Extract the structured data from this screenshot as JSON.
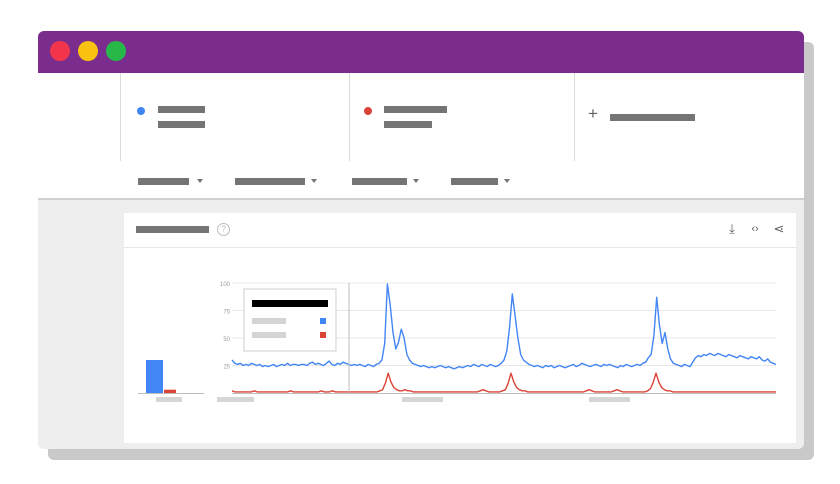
{
  "window": {
    "title_bar_color": "#7b2d8e",
    "controls": [
      "close-icon",
      "minimize-icon",
      "maximize-icon"
    ],
    "control_colors": [
      "#f2354b",
      "#f9c110",
      "#28b84a"
    ]
  },
  "search_terms": [
    {
      "color": "#4285f4",
      "placeholder": "redacted"
    },
    {
      "color": "#db4437",
      "placeholder": "redacted"
    }
  ],
  "add_term": {
    "icon": "plus-icon",
    "symbol": "+"
  },
  "filters": [
    {
      "placeholder": "redacted"
    },
    {
      "placeholder": "redacted"
    },
    {
      "placeholder": "redacted"
    },
    {
      "placeholder": "redacted"
    }
  ],
  "card": {
    "help_symbol": "?",
    "tools": [
      {
        "icon": "download-icon",
        "symbol": "⤓"
      },
      {
        "icon": "embed-icon",
        "symbol": "‹›"
      },
      {
        "icon": "share-icon",
        "symbol": "⋖"
      }
    ]
  },
  "chart_data": {
    "type": "line",
    "ylim": [
      0,
      100
    ],
    "y_ticks": [
      "25",
      "50",
      "75",
      "100"
    ],
    "grid": true,
    "average_bars": [
      {
        "color": "#4285f4",
        "value": 30
      },
      {
        "color": "#db4437",
        "value": 3
      }
    ],
    "series": [
      {
        "color": "#4285f4",
        "values": [
          30,
          27,
          26,
          27,
          25,
          26,
          25,
          27,
          26,
          25,
          26,
          24,
          25,
          24,
          25,
          26,
          24,
          25,
          26,
          25,
          27,
          25,
          26,
          26,
          25,
          26,
          26,
          25,
          27,
          28,
          26,
          27,
          26,
          25,
          27,
          29,
          26,
          25,
          27,
          26,
          28,
          27,
          26,
          25,
          26,
          25,
          26,
          25,
          24,
          26,
          25,
          24,
          26,
          27,
          30,
          45,
          99,
          80,
          55,
          40,
          46,
          58,
          50,
          35,
          30,
          27,
          26,
          25,
          24,
          25,
          24,
          23,
          24,
          23,
          24,
          25,
          24,
          23,
          24,
          23,
          22,
          23,
          24,
          23,
          24,
          25,
          24,
          26,
          25,
          24,
          26,
          25,
          24,
          26,
          25,
          24,
          25,
          27,
          30,
          38,
          60,
          90,
          70,
          50,
          35,
          30,
          28,
          26,
          25,
          24,
          25,
          24,
          23,
          25,
          24,
          25,
          23,
          24,
          25,
          24,
          23,
          24,
          25,
          26,
          24,
          25,
          27,
          26,
          25,
          24,
          25,
          26,
          25,
          24,
          26,
          25,
          26,
          25,
          24,
          23,
          25,
          24,
          26,
          25,
          24,
          25,
          26,
          25,
          27,
          28,
          32,
          35,
          52,
          87,
          62,
          45,
          55,
          40,
          31,
          27,
          26,
          25,
          24,
          26,
          25,
          24,
          28,
          32,
          34,
          33,
          35,
          34,
          36,
          35,
          34,
          36,
          35,
          34,
          33,
          35,
          34,
          33,
          32,
          34,
          33,
          32,
          31,
          33,
          32,
          31,
          33,
          30,
          29,
          31,
          28,
          27,
          26
        ]
      },
      {
        "color": "#db4437",
        "values": [
          2,
          1,
          1,
          1,
          1,
          1,
          1,
          1,
          2,
          1,
          1,
          1,
          1,
          1,
          1,
          1,
          1,
          1,
          1,
          1,
          1,
          2,
          1,
          1,
          1,
          1,
          1,
          1,
          1,
          1,
          1,
          1,
          2,
          1,
          1,
          1,
          2,
          1,
          1,
          1,
          1,
          1,
          1,
          1,
          1,
          1,
          1,
          1,
          1,
          1,
          1,
          1,
          1,
          2,
          3,
          9,
          18,
          10,
          5,
          3,
          2,
          2,
          3,
          2,
          2,
          1,
          1,
          1,
          1,
          1,
          1,
          1,
          1,
          1,
          1,
          1,
          1,
          1,
          1,
          1,
          1,
          1,
          1,
          1,
          1,
          1,
          1,
          1,
          1,
          2,
          3,
          2,
          1,
          1,
          1,
          1,
          1,
          2,
          3,
          9,
          18,
          10,
          5,
          3,
          2,
          2,
          1,
          1,
          1,
          1,
          1,
          1,
          1,
          1,
          1,
          1,
          1,
          1,
          1,
          1,
          1,
          1,
          1,
          1,
          1,
          1,
          1,
          2,
          3,
          2,
          1,
          1,
          1,
          1,
          1,
          1,
          1,
          2,
          3,
          2,
          1,
          1,
          1,
          1,
          1,
          1,
          1,
          1,
          1,
          2,
          4,
          10,
          18,
          10,
          5,
          3,
          2,
          2,
          1,
          1,
          1,
          1,
          1,
          1,
          1,
          1,
          1,
          1,
          1,
          1,
          1,
          1,
          1,
          1,
          1,
          1,
          1,
          1,
          1,
          1,
          1,
          1,
          1,
          1,
          1,
          1,
          1,
          1,
          1,
          1,
          1,
          1,
          1,
          1,
          1,
          1
        ]
      }
    ]
  }
}
